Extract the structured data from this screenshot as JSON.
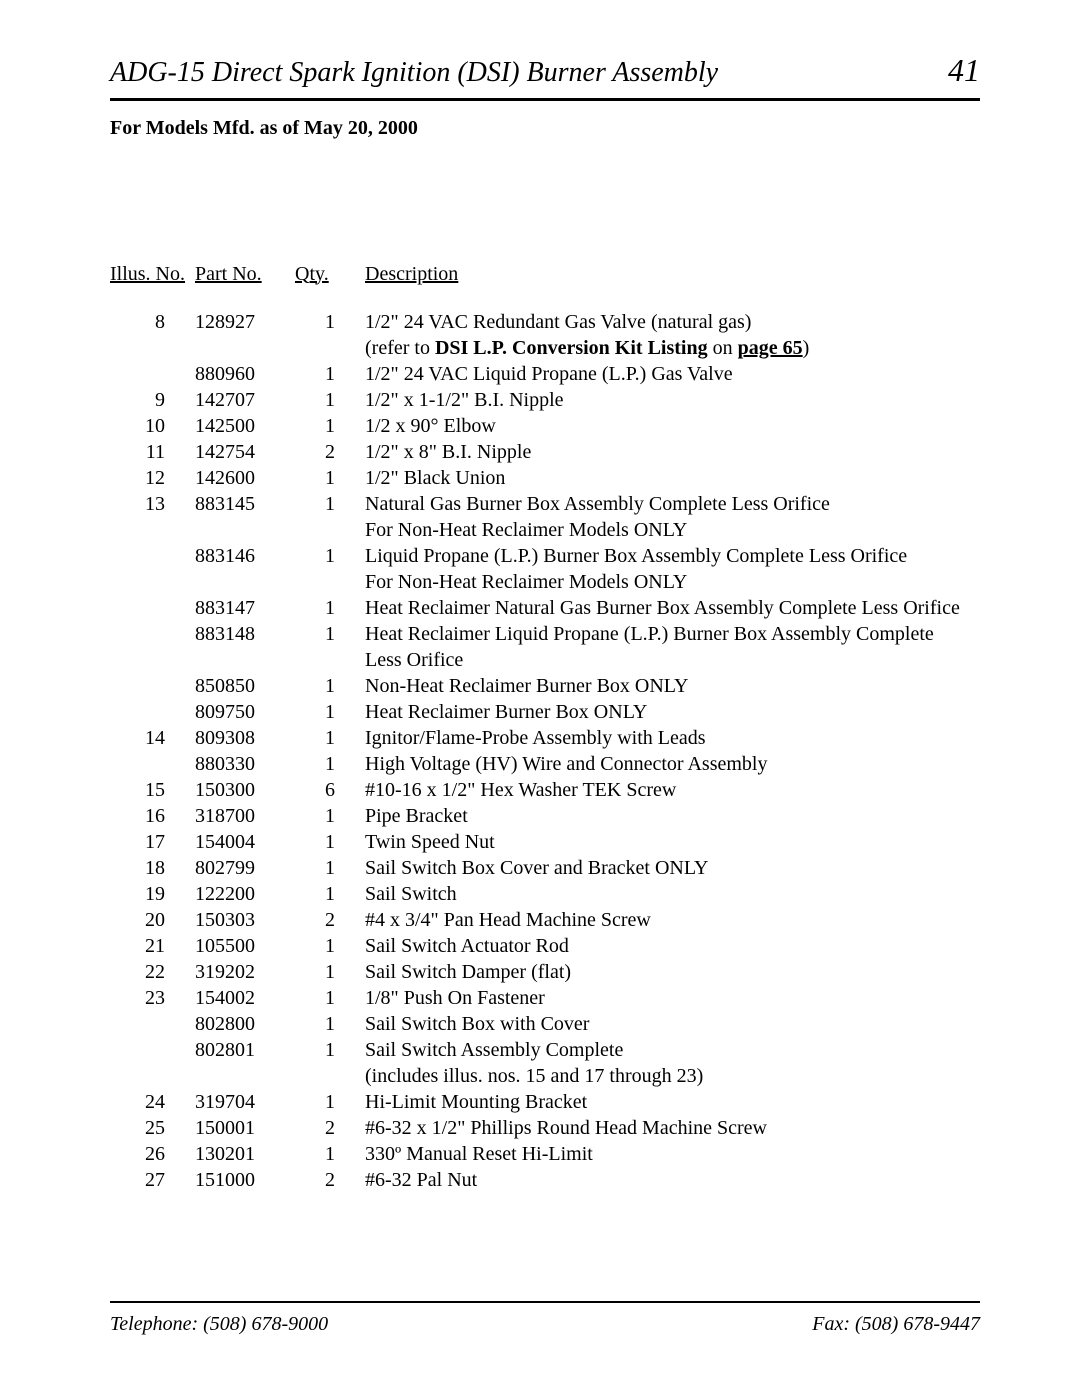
{
  "header": {
    "title": "ADG-15 Direct Spark Ignition (DSI) Burner Assembly",
    "page_number": "41"
  },
  "subtitle": "For Models Mfd. as of May 20, 2000",
  "columns": {
    "illus": "Illus. No.",
    "part": "Part No.",
    "qty": "Qty.",
    "desc": "Description"
  },
  "footer": {
    "telephone": "Telephone: (508) 678-9000",
    "fax": "Fax: (508) 678-9447"
  },
  "rows": [
    {
      "illus": "8",
      "part": "128927",
      "qty": "1",
      "desc": "1/2\" 24 VAC Redundant Gas Valve (natural gas)"
    },
    {
      "illus": "",
      "part": "",
      "qty": "",
      "desc": "(refer to <b>DSI L.P. Conversion Kit Listing</b> on <a class=\"ref\"><b>page 65</b></a>)"
    },
    {
      "illus": "",
      "part": "880960",
      "qty": "1",
      "desc": "1/2\" 24 VAC Liquid Propane (L.P.) Gas Valve"
    },
    {
      "illus": "9",
      "part": "142707",
      "qty": "1",
      "desc": "1/2\" x 1-1/2\" B.I. Nipple"
    },
    {
      "illus": "10",
      "part": "142500",
      "qty": "1",
      "desc": "1/2 x 90° Elbow"
    },
    {
      "illus": "11",
      "part": "142754",
      "qty": "2",
      "desc": "1/2\" x 8\" B.I. Nipple"
    },
    {
      "illus": "12",
      "part": "142600",
      "qty": "1",
      "desc": "1/2\" Black Union"
    },
    {
      "illus": "13",
      "part": "883145",
      "qty": "1",
      "desc": "Natural Gas Burner Box Assembly Complete Less Orifice"
    },
    {
      "illus": "",
      "part": "",
      "qty": "",
      "desc": "For Non-Heat Reclaimer Models ONLY"
    },
    {
      "illus": "",
      "part": "883146",
      "qty": "1",
      "desc": "Liquid Propane (L.P.) Burner Box Assembly Complete Less Orifice"
    },
    {
      "illus": "",
      "part": "",
      "qty": "",
      "desc": "For Non-Heat Reclaimer Models ONLY"
    },
    {
      "illus": "",
      "part": "883147",
      "qty": "1",
      "desc": "Heat Reclaimer Natural Gas Burner Box Assembly Complete Less Orifice"
    },
    {
      "illus": "",
      "part": "883148",
      "qty": "1",
      "desc": "Heat Reclaimer Liquid Propane (L.P.) Burner Box Assembly Complete"
    },
    {
      "illus": "",
      "part": "",
      "qty": "",
      "desc": "Less Orifice"
    },
    {
      "illus": "",
      "part": "850850",
      "qty": "1",
      "desc": "Non-Heat Reclaimer Burner Box ONLY"
    },
    {
      "illus": "",
      "part": "809750",
      "qty": "1",
      "desc": "Heat Reclaimer Burner Box ONLY"
    },
    {
      "illus": "14",
      "part": "809308",
      "qty": "1",
      "desc": "Ignitor/Flame-Probe Assembly with Leads"
    },
    {
      "illus": "",
      "part": "880330",
      "qty": "1",
      "desc": "High Voltage (HV) Wire and Connector Assembly"
    },
    {
      "illus": "15",
      "part": "150300",
      "qty": "6",
      "desc": "#10-16 x 1/2\" Hex Washer TEK Screw"
    },
    {
      "illus": "16",
      "part": "318700",
      "qty": "1",
      "desc": "Pipe Bracket"
    },
    {
      "illus": "17",
      "part": "154004",
      "qty": "1",
      "desc": "Twin Speed Nut"
    },
    {
      "illus": "18",
      "part": "802799",
      "qty": "1",
      "desc": "Sail Switch Box Cover and Bracket ONLY"
    },
    {
      "illus": "19",
      "part": "122200",
      "qty": "1",
      "desc": "Sail Switch"
    },
    {
      "illus": "20",
      "part": "150303",
      "qty": "2",
      "desc": "#4 x 3/4\" Pan Head Machine Screw"
    },
    {
      "illus": "21",
      "part": "105500",
      "qty": "1",
      "desc": "Sail Switch Actuator Rod"
    },
    {
      "illus": "22",
      "part": "319202",
      "qty": "1",
      "desc": "Sail Switch Damper (flat)"
    },
    {
      "illus": "23",
      "part": "154002",
      "qty": "1",
      "desc": "1/8\" Push On Fastener"
    },
    {
      "illus": "",
      "part": "802800",
      "qty": "1",
      "desc": "Sail Switch Box with Cover"
    },
    {
      "illus": "",
      "part": "802801",
      "qty": "1",
      "desc": "Sail Switch Assembly Complete"
    },
    {
      "illus": "",
      "part": "",
      "qty": "",
      "desc": "(includes illus. nos. 15 and 17 through 23)"
    },
    {
      "illus": "24",
      "part": "319704",
      "qty": "1",
      "desc": "Hi-Limit Mounting Bracket"
    },
    {
      "illus": "25",
      "part": "150001",
      "qty": "2",
      "desc": "#6-32 x 1/2\" Phillips Round Head Machine Screw"
    },
    {
      "illus": "26",
      "part": "130201",
      "qty": "1",
      "desc": "330º Manual Reset Hi-Limit"
    },
    {
      "illus": "27",
      "part": "151000",
      "qty": "2",
      "desc": "#6-32 Pal Nut"
    }
  ]
}
